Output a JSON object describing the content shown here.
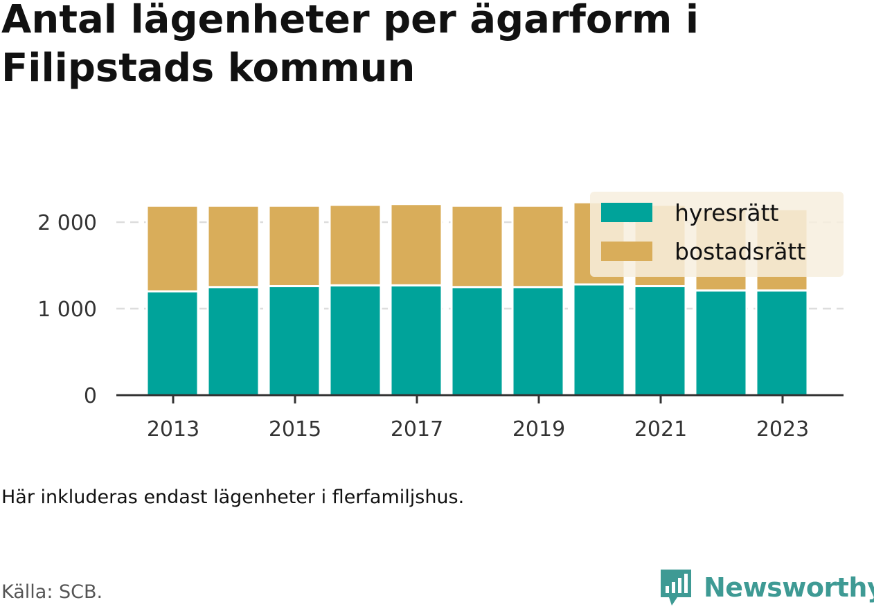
{
  "title": "Antal lägenheter per ägarform i Filipstads kommun",
  "note": "Här inkluderas endast lägenheter i flerfamiljshus.",
  "source": "Källa: SCB.",
  "brand": {
    "name": "Newsworthy",
    "icon": "newsworthy-logo-icon",
    "color": "#3e9a94"
  },
  "colors": {
    "hyresratt": "#00a39a",
    "bostadsratt": "#d9ad5a",
    "grid": "#dddddd",
    "axis": "#333333",
    "legend_bg": "#f7eede"
  },
  "chart_data": {
    "type": "bar",
    "stacked": true,
    "title": "Antal lägenheter per ägarform i Filipstads kommun",
    "categories": [
      "2013",
      "2014",
      "2015",
      "2016",
      "2017",
      "2018",
      "2019",
      "2020",
      "2021",
      "2022",
      "2023"
    ],
    "x_tick_labels": [
      "2013",
      "2015",
      "2017",
      "2019",
      "2021",
      "2023"
    ],
    "series": [
      {
        "name": "hyresrätt",
        "values": [
          1200,
          1250,
          1260,
          1270,
          1270,
          1250,
          1250,
          1280,
          1260,
          1210,
          1210
        ]
      },
      {
        "name": "bostadsrätt",
        "values": [
          990,
          940,
          930,
          930,
          940,
          940,
          940,
          950,
          940,
          940,
          940
        ]
      }
    ],
    "ylim": [
      0,
      2200
    ],
    "y_ticks": [
      0,
      1000,
      2000
    ],
    "y_tick_labels": [
      "0",
      "1 000",
      "2 000"
    ],
    "grid": true,
    "legend_position": "top-right"
  }
}
